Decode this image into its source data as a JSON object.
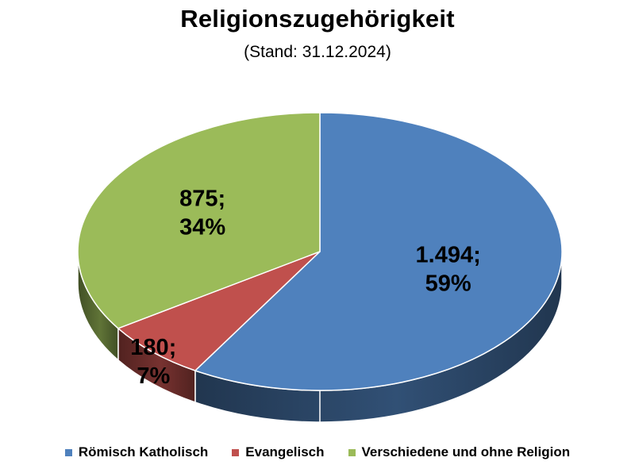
{
  "title": "Religionszugehörigkeit",
  "subtitle": "(Stand: 31.12.2024)",
  "chart_data": {
    "type": "pie",
    "style": "3d",
    "title": "Religionszugehörigkeit",
    "subtitle": "(Stand: 31.12.2024)",
    "legend_position": "bottom",
    "slices": [
      {
        "name": "Römisch Katholisch",
        "value": 1494,
        "value_label": "1.494",
        "percent": 59,
        "percent_label": "59%",
        "color": "#4f81bd"
      },
      {
        "name": "Evangelisch",
        "value": 180,
        "value_label": "180",
        "percent": 7,
        "percent_label": "7%",
        "color": "#c0504d"
      },
      {
        "name": "Verschiedene und ohne Religion",
        "value": 875,
        "value_label": "875",
        "percent": 34,
        "percent_label": "34%",
        "color": "#9bbb59"
      }
    ]
  }
}
